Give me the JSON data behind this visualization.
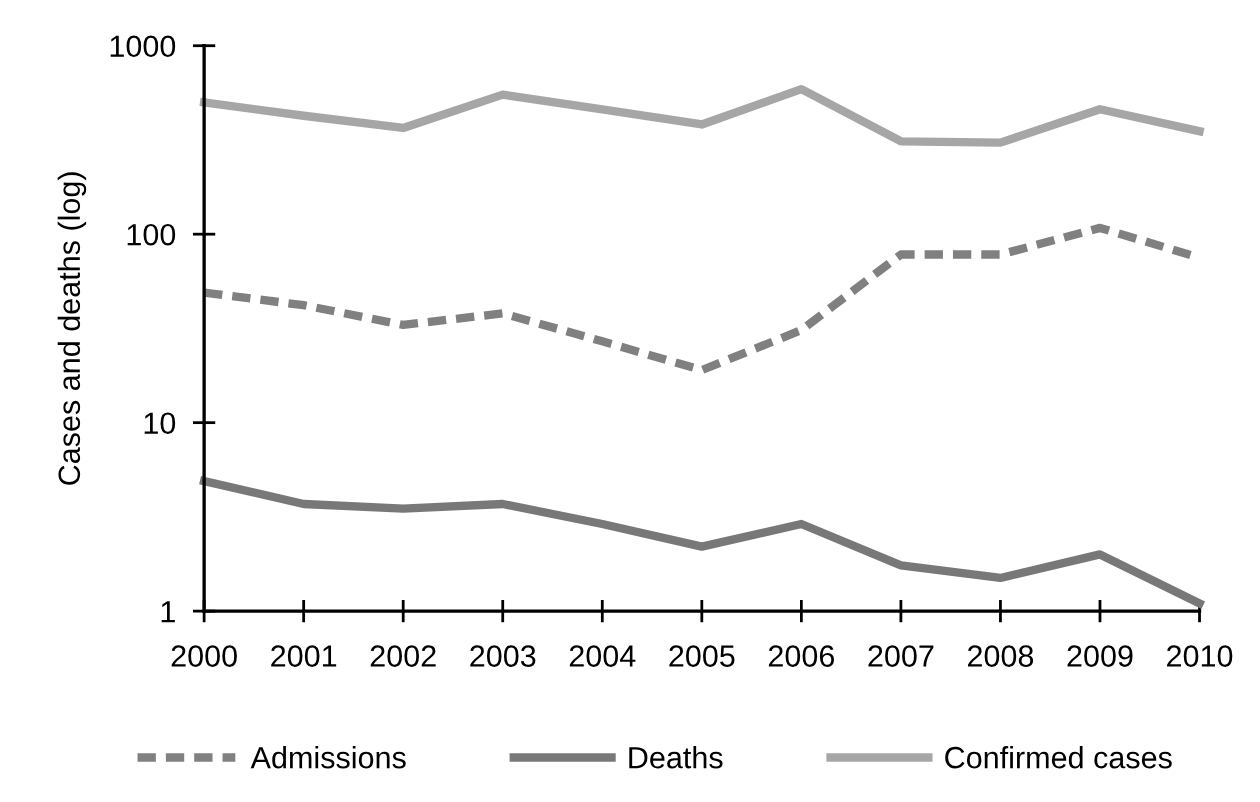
{
  "chart_data": {
    "type": "line",
    "ylabel": "Cases and deaths (log)",
    "x": [
      2000,
      2001,
      2002,
      2003,
      2004,
      2005,
      2006,
      2007,
      2008,
      2009,
      2010
    ],
    "series": [
      {
        "name": "Admissions",
        "color": "#808080",
        "line_style": "dashed",
        "values": [
          49,
          42,
          33,
          38,
          27,
          19,
          31,
          78,
          78,
          108,
          75
        ]
      },
      {
        "name": "Deaths",
        "color": "#787878",
        "line_style": "solid",
        "values": [
          4.9,
          3.7,
          3.5,
          3.7,
          2.9,
          2.2,
          2.9,
          1.75,
          1.5,
          2.0,
          1.1
        ]
      },
      {
        "name": "Confirmed cases",
        "color": "#a6a6a6",
        "line_style": "solid",
        "values": [
          500,
          425,
          366,
          550,
          460,
          382,
          588,
          311,
          306,
          460,
          352
        ]
      }
    ],
    "xlim": [
      2000,
      2010
    ],
    "ylim": [
      1,
      1000
    ],
    "xticks": [
      2000,
      2001,
      2002,
      2003,
      2004,
      2005,
      2006,
      2007,
      2008,
      2009,
      2010
    ],
    "yticks": [
      1,
      10,
      100,
      1000
    ],
    "log": "y",
    "legend": "bottom"
  }
}
